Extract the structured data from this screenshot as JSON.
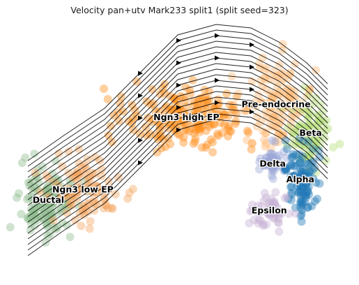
{
  "chart_data": {
    "type": "scatter",
    "title": "Velocity pan+utv Mark233 split1 (split seed=323)",
    "xlabel": "",
    "ylabel": "",
    "axes_visible": false,
    "grid": false,
    "legend": "none",
    "overlay": "velocity streamlines with arrowheads",
    "clusters": [
      {
        "label": "Ductal",
        "color": "#8fbc8f",
        "x": 0.12,
        "y": 0.3
      },
      {
        "label": "Ngn3 low EP",
        "color": "#f4a460",
        "x": 0.22,
        "y": 0.34
      },
      {
        "label": "Ngn3 high EP",
        "color": "#ff8c1a",
        "x": 0.52,
        "y": 0.62
      },
      {
        "label": "Pre-endocrine",
        "color": "#ffbb78",
        "x": 0.78,
        "y": 0.67
      },
      {
        "label": "Beta",
        "color": "#b5de7a",
        "x": 0.88,
        "y": 0.56
      },
      {
        "label": "Delta",
        "color": "#9ba8d6",
        "x": 0.77,
        "y": 0.44
      },
      {
        "label": "Alpha",
        "color": "#1f77b4",
        "x": 0.85,
        "y": 0.38
      },
      {
        "label": "Epsilon",
        "color": "#c5b0d5",
        "x": 0.76,
        "y": 0.26
      }
    ]
  }
}
